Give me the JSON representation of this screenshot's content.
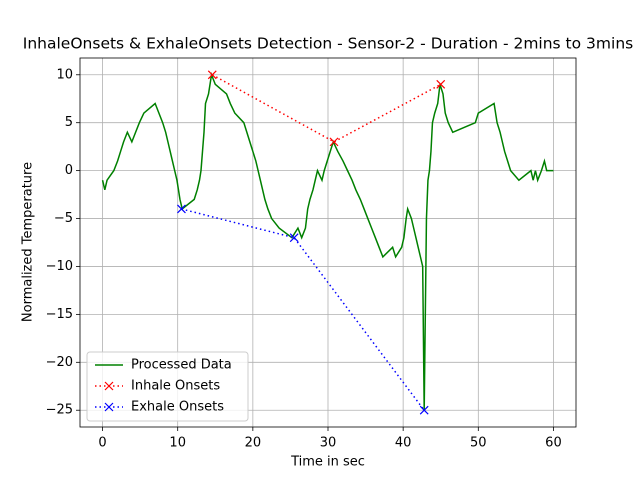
{
  "chart_data": {
    "type": "line",
    "title": "InhaleOnsets & ExhaleOnsets Detection - Sensor-2 - Duration - 2mins to 3mins",
    "x_label": "Time in sec",
    "y_label": "Normalized Temperature",
    "xlim": [
      -3,
      63
    ],
    "ylim": [
      -26.75,
      11.75
    ],
    "xticks": [
      0,
      10,
      20,
      30,
      40,
      50,
      60
    ],
    "yticks": [
      {
        "value": -25,
        "label": "−25"
      },
      {
        "value": -20,
        "label": "−20"
      },
      {
        "value": -15,
        "label": "−15"
      },
      {
        "value": -10,
        "label": "−10"
      },
      {
        "value": -5,
        "label": "−5"
      },
      0,
      5,
      10
    ],
    "grid": true,
    "legend_position": "lower left",
    "series": [
      {
        "name": "Processed Data",
        "color": "#008000",
        "linestyle": "solid",
        "marker": "none",
        "x": [
          0,
          0.3,
          0.6,
          1.5,
          2,
          2.4,
          2.8,
          3.3,
          3.9,
          4.4,
          4.9,
          5.5,
          7,
          7.5,
          8,
          8.4,
          8.7,
          9,
          9.3,
          9.6,
          9.9,
          10.1,
          10.3,
          10.6,
          12.2,
          12.6,
          12.9,
          13.1,
          13.3,
          13.5,
          13.7,
          14.1,
          14.5,
          15,
          16.5,
          17,
          17.6,
          18.8,
          19.2,
          19.6,
          20,
          20.4,
          20.7,
          21,
          21.3,
          21.6,
          22,
          22.5,
          23.5,
          25.2,
          26,
          26.5,
          27,
          27.3,
          27.6,
          28,
          28.3,
          28.6,
          29.2,
          29.5,
          29.9,
          30.3,
          30.7,
          31.3,
          32,
          32.6,
          33.2,
          33.7,
          34.3,
          34.8,
          35.3,
          35.8,
          36.3,
          36.8,
          37.3,
          38.6,
          39,
          39.8,
          40.1,
          40.4,
          40.6,
          41.1,
          41.4,
          41.7,
          42,
          42.3,
          42.6,
          42.8,
          43.1,
          43.3,
          43.5,
          43.7,
          43.9,
          44.2,
          44.6,
          44.9,
          45.3,
          45.6,
          46,
          46.6,
          49.6,
          50,
          52.1,
          52.5,
          52.9,
          53.2,
          53.5,
          53.9,
          54.3,
          55.4,
          57,
          57.3,
          57.6,
          57.9,
          58.4,
          58.8,
          59.1,
          60
        ],
        "values": [
          -1,
          -2,
          -1,
          0,
          1,
          2,
          3,
          4,
          3,
          4,
          5,
          6,
          7,
          6,
          5,
          4,
          3,
          2,
          1,
          0,
          -1,
          -2,
          -3,
          -4,
          -3,
          -2,
          -1,
          0,
          2,
          4,
          7,
          8,
          10,
          9,
          8,
          7,
          6,
          5,
          4,
          3,
          2,
          1,
          0,
          -1,
          -2,
          -3,
          -4,
          -5,
          -6,
          -7,
          -6,
          -7,
          -6,
          -4,
          -3,
          -2,
          -1,
          0,
          -1,
          0,
          1,
          2,
          3,
          2,
          1,
          0,
          -1,
          -2,
          -3,
          -4,
          -5,
          -6,
          -7,
          -8,
          -9,
          -8,
          -9,
          -8,
          -7,
          -5,
          -4,
          -5,
          -6,
          -7,
          -8,
          -9,
          -10,
          -25,
          -5,
          -1,
          0,
          2,
          5,
          6,
          7,
          9,
          8,
          6,
          5,
          4,
          5,
          6,
          7,
          5,
          4,
          3,
          2,
          1,
          0,
          -1,
          0,
          -1,
          0,
          -1,
          0,
          1,
          0,
          0
        ]
      },
      {
        "name": "Inhale Onsets",
        "color": "#ff0000",
        "linestyle": "dotted",
        "marker": "x",
        "x": [
          14.6,
          30.8,
          45
        ],
        "values": [
          10,
          3,
          9
        ]
      },
      {
        "name": "Exhale Onsets",
        "color": "#0000ff",
        "linestyle": "dotted",
        "marker": "x",
        "x": [
          10.5,
          25.5,
          42.8
        ],
        "values": [
          -4,
          -7,
          -25
        ]
      }
    ]
  }
}
